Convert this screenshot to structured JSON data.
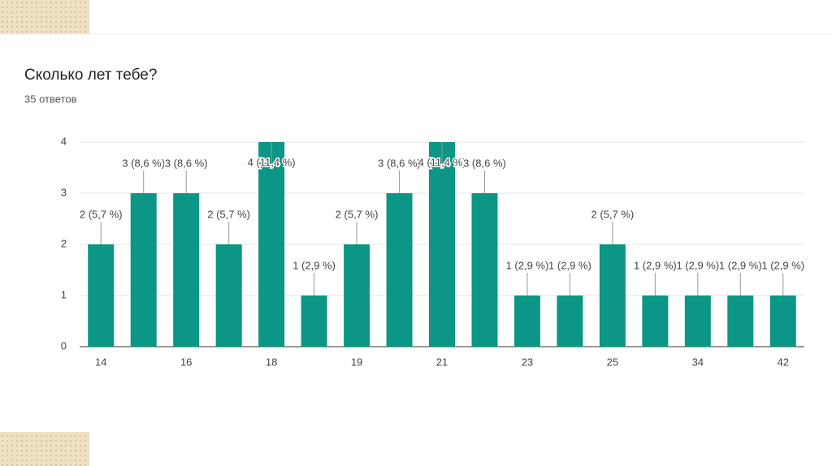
{
  "chart_data": {
    "type": "bar",
    "title": "Сколько лет тебе?",
    "subtitle": "35 ответов",
    "categories": [
      "14",
      null,
      "16",
      null,
      "18",
      null,
      "19",
      null,
      "21",
      null,
      "23",
      null,
      "25",
      null,
      "34",
      null,
      "42"
    ],
    "values": [
      2,
      3,
      3,
      2,
      4,
      1,
      2,
      3,
      4,
      3,
      1,
      1,
      2,
      1,
      1,
      1,
      1
    ],
    "value_labels": [
      "2 (5,7 %)",
      "3 (8,6 %)",
      "3 (8,6 %)",
      "2 (5,7 %)",
      "4 (11,4 %)",
      "1 (2,9 %)",
      "2 (5,7 %)",
      "3 (8,6 %)",
      "4 (11,4 %)",
      "3 (8,6 %)",
      "1 (2,9 %)",
      "1 (2,9 %)",
      "2 (5,7 %)",
      "1 (2,9 %)",
      "1 (2,9 %)",
      "1 (2,9 %)",
      "1 (2,9 %)"
    ],
    "color": "#0b9685",
    "ylim": [
      0,
      4
    ],
    "yticks": [
      0,
      1,
      2,
      3,
      4
    ],
    "grid": true
  }
}
